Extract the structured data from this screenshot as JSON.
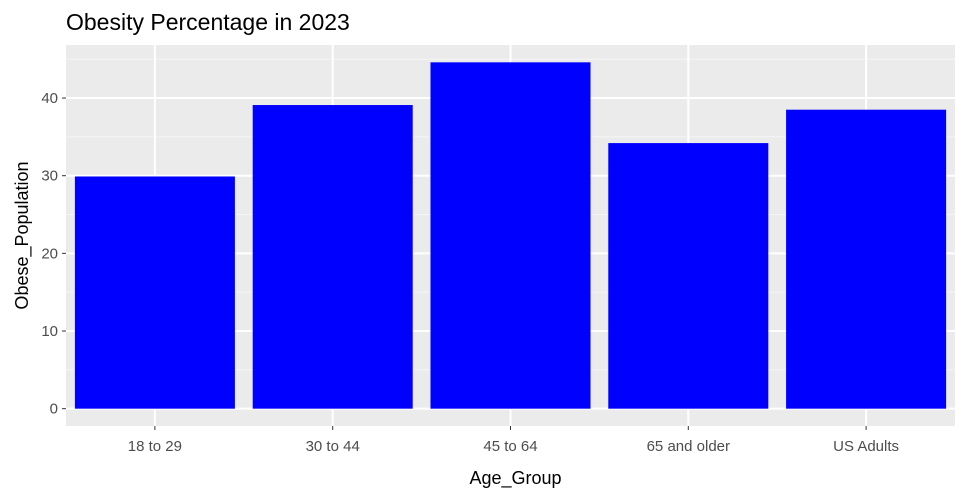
{
  "chart_data": {
    "type": "bar",
    "title": "Obesity Percentage in 2023",
    "xlabel": "Age_Group",
    "ylabel": "Obese_Population",
    "categories": [
      "18 to 29",
      "30 to 44",
      "45 to 64",
      "65 and older",
      "US Adults"
    ],
    "values": [
      29.9,
      39.1,
      44.6,
      34.2,
      38.5
    ],
    "ylim": [
      -2.23,
      46.83
    ],
    "yticks": [
      0,
      10,
      20,
      30,
      40
    ],
    "ytick_labels": [
      "0",
      "10",
      "20",
      "30",
      "40"
    ],
    "grid": true,
    "legend": "none",
    "colors": {
      "bar": "#0000ff",
      "panel": "#ebebeb",
      "grid_major": "#ffffff",
      "grid_minor": "#f5f5f5",
      "tick": "#333333"
    }
  }
}
